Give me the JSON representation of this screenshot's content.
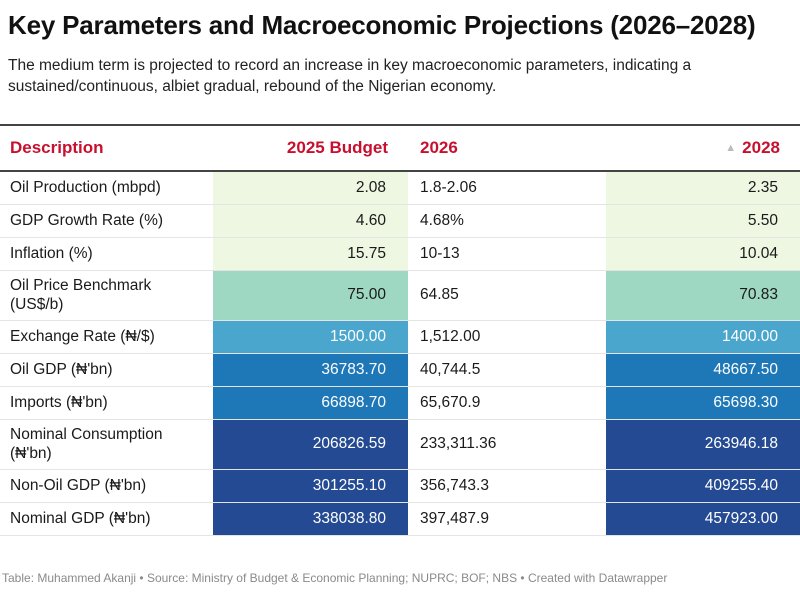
{
  "title": "Key Parameters and Macroeconomic Projections (2026–2028)",
  "subtitle": "The medium term is projected to record an increase in key macroeconomic parameters, indicating a sustained/continuous, albiet gradual, rebound of the Nigerian economy.",
  "footer": "Table: Muhammed Akanji • Source: Ministry of Budget & Economic Planning; NUPRC; BOF; NBS • Created with Datawrapper",
  "colors": {
    "header_text": "#c8102e"
  },
  "chart_data": {
    "type": "table",
    "columns": [
      "Description",
      "2025 Budget",
      "2026",
      "2028"
    ],
    "sorted_column": "2028",
    "sort_icon": "triangle-up-icon",
    "rows": [
      {
        "description": "Oil Production (mbpd)",
        "budget_2025": "2.08",
        "y2026": "1.8-2.06",
        "y2028": "2.35",
        "bg": "#edf7e2",
        "fg": "#1a1a1a"
      },
      {
        "description": "GDP Growth Rate (%)",
        "budget_2025": "4.60",
        "y2026": "4.68%",
        "y2028": "5.50",
        "bg": "#edf7e2",
        "fg": "#1a1a1a"
      },
      {
        "description": "Inflation (%)",
        "budget_2025": "15.75",
        "y2026": "10-13",
        "y2028": "10.04",
        "bg": "#edf7e2",
        "fg": "#1a1a1a"
      },
      {
        "description": "Oil Price Benchmark (US$/b)",
        "budget_2025": "75.00",
        "y2026": "64.85",
        "y2028": "70.83",
        "bg": "#9fd8c2",
        "fg": "#1a1a1a"
      },
      {
        "description": "Exchange Rate (₦/$)",
        "budget_2025": "1500.00",
        "y2026": "1,512.00",
        "y2028": "1400.00",
        "bg": "#4aa6cc",
        "fg": "#ffffff"
      },
      {
        "description": "Oil GDP (₦'bn)",
        "budget_2025": "36783.70",
        "y2026": "40,744.5",
        "y2028": "48667.50",
        "bg": "#1e78b8",
        "fg": "#ffffff"
      },
      {
        "description": "Imports (₦'bn)",
        "budget_2025": "66898.70",
        "y2026": "65,670.9",
        "y2028": "65698.30",
        "bg": "#1e78b8",
        "fg": "#ffffff"
      },
      {
        "description": "Nominal Consumption (₦'bn)",
        "budget_2025": "206826.59",
        "y2026": "233,311.36",
        "y2028": "263946.18",
        "bg": "#234a92",
        "fg": "#ffffff"
      },
      {
        "description": "Non-Oil GDP (₦'bn)",
        "budget_2025": "301255.10",
        "y2026": "356,743.3",
        "y2028": "409255.40",
        "bg": "#234a92",
        "fg": "#ffffff"
      },
      {
        "description": "Nominal GDP (₦'bn)",
        "budget_2025": "338038.80",
        "y2026": "397,487.9",
        "y2028": "457923.00",
        "bg": "#234a92",
        "fg": "#ffffff"
      }
    ]
  }
}
